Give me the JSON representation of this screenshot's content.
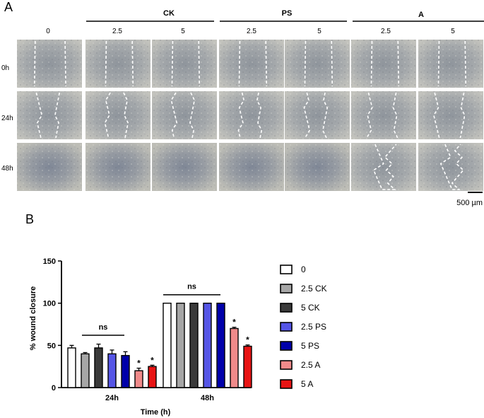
{
  "panel_a": {
    "letter": "A",
    "group_headers": [
      "CK",
      "PS",
      "A"
    ],
    "column_labels": [
      "0",
      "2.5",
      "5",
      "2.5",
      "5",
      "2.5",
      "5"
    ],
    "row_labels": [
      "0h",
      "24h",
      "48h"
    ],
    "scale_bar_label": "500 µm"
  },
  "panel_b": {
    "letter": "B"
  },
  "colors": {
    "0": "#ffffff",
    "2.5 CK": "#a6a6a6",
    "5 CK": "#3a3a3a",
    "2.5 PS": "#5555e6",
    "5 PS": "#0000aa",
    "2.5 A": "#f08a8a",
    "5 A": "#e81414"
  },
  "chart_data": {
    "type": "bar",
    "categories": [
      "24h",
      "48h"
    ],
    "series": [
      {
        "name": "0",
        "values": [
          47,
          100
        ],
        "errors": [
          3,
          0
        ]
      },
      {
        "name": "2.5 CK",
        "values": [
          40,
          100
        ],
        "errors": [
          1.5,
          0
        ]
      },
      {
        "name": "5 CK",
        "values": [
          47,
          100
        ],
        "errors": [
          4.5,
          0
        ]
      },
      {
        "name": "2.5 PS",
        "values": [
          40,
          100
        ],
        "errors": [
          4.5,
          0
        ]
      },
      {
        "name": "5 PS",
        "values": [
          38,
          100
        ],
        "errors": [
          4.5,
          0
        ]
      },
      {
        "name": "2.5 A",
        "values": [
          20,
          70
        ],
        "errors": [
          3,
          1.5
        ]
      },
      {
        "name": "5 A",
        "values": [
          25,
          49
        ],
        "errors": [
          1.5,
          1.5
        ]
      }
    ],
    "xlabel": "Time (h)",
    "ylabel": "% wound closure",
    "ylim": [
      0,
      150
    ],
    "yticks": [
      0,
      50,
      100,
      150
    ],
    "annotations": {
      "significance": [
        "ns",
        "ns"
      ],
      "asterisks": [
        "*",
        "*",
        "*",
        "*"
      ]
    },
    "legend_position": "right",
    "grid": false
  }
}
